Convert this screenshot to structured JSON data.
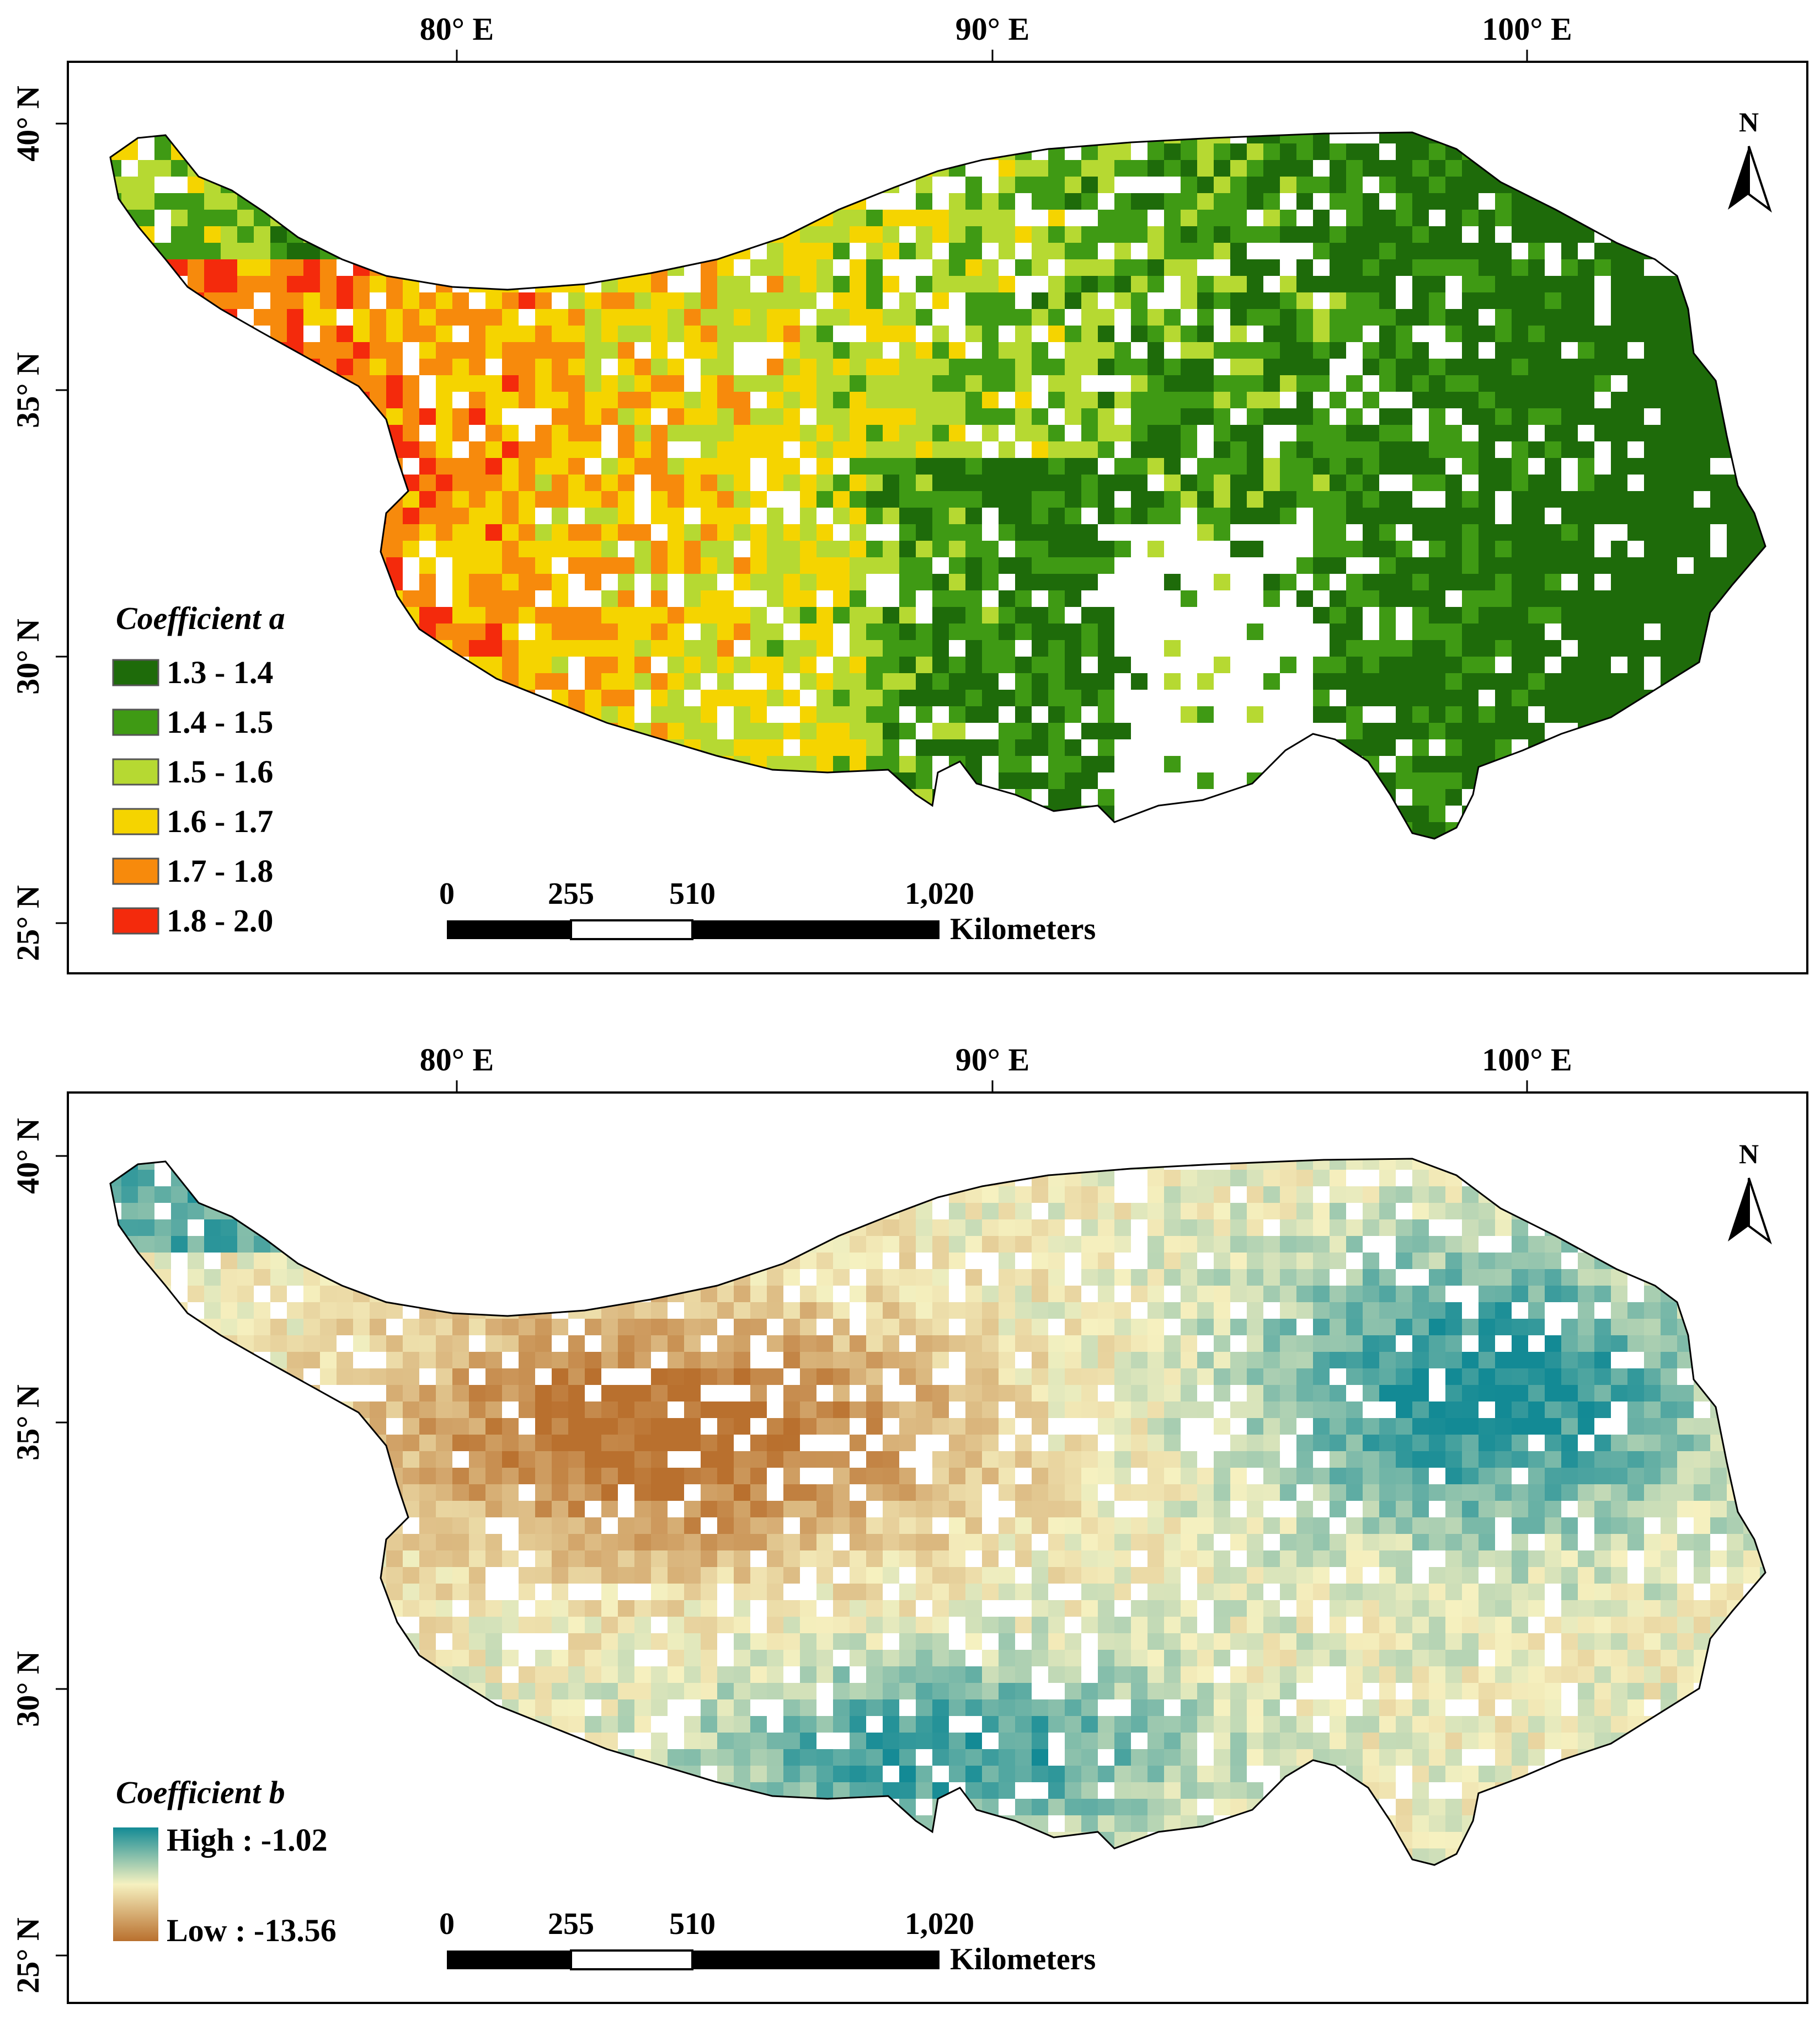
{
  "panels": [
    {
      "id": "coefficient-a",
      "legend_title": "Coefficient a",
      "legend_items": [
        {
          "label": "1.3 - 1.4",
          "color": "#1e6b0a"
        },
        {
          "label": "1.4 - 1.5",
          "color": "#3f9a14"
        },
        {
          "label": "1.5 - 1.6",
          "color": "#b6d932"
        },
        {
          "label": "1.6 - 1.7",
          "color": "#f5d400"
        },
        {
          "label": "1.7 - 1.8",
          "color": "#f78a0c"
        },
        {
          "label": "1.8 - 2.0",
          "color": "#f42a0c"
        }
      ]
    },
    {
      "id": "coefficient-b",
      "legend_title": "Coefficient b",
      "ramp_high_label": "High : -1.02",
      "ramp_low_label": "Low : -13.56",
      "ramp_colors": [
        "#138a95",
        "#f6f1c0",
        "#b9702e"
      ]
    }
  ],
  "longitude_labels": [
    "80° E",
    "90° E",
    "100° E"
  ],
  "latitude_labels": [
    "40° N",
    "35° N",
    "30° N",
    "25° N"
  ],
  "north_arrow_label": "N",
  "scale_bar": {
    "ticks": [
      "0",
      "255",
      "510",
      "1,020"
    ],
    "unit": "Kilometers"
  }
}
